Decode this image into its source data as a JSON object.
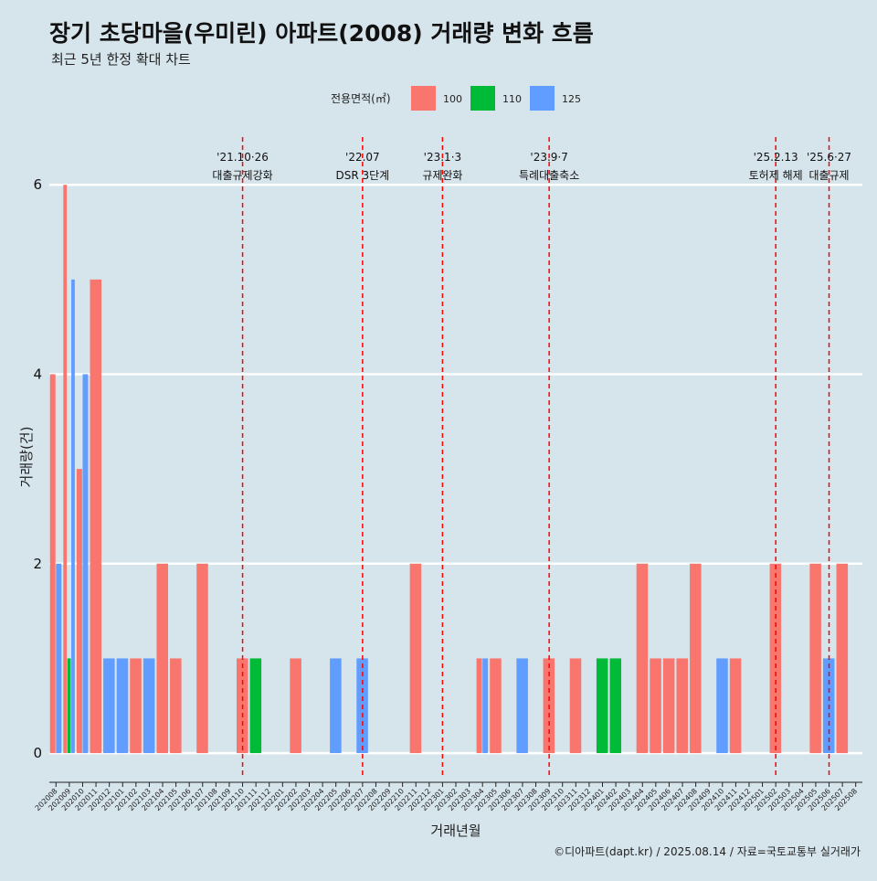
{
  "chart_data": {
    "type": "bar",
    "title": "장기 초당마을(우미린) 아파트(2008) 거래량 변화 흐름",
    "subtitle": "최근 5년 한정 확대 차트",
    "xlabel": "거래년월",
    "ylabel": "거래량(건)",
    "ylim": [
      -0.25,
      6.6
    ],
    "yticks": [
      0,
      2,
      4,
      6
    ],
    "grid": true,
    "legend": {
      "title": "전용면적(㎡)",
      "placement": "top",
      "entries": [
        {
          "name": "100",
          "color": "#f8766d"
        },
        {
          "name": "110",
          "color": "#00ba38"
        },
        {
          "name": "125",
          "color": "#619cff"
        }
      ]
    },
    "categories": [
      "202008",
      "202009",
      "202010",
      "202011",
      "202012",
      "202101",
      "202102",
      "202103",
      "202104",
      "202105",
      "202106",
      "202107",
      "202108",
      "202109",
      "202110",
      "202111",
      "202112",
      "202201",
      "202202",
      "202203",
      "202204",
      "202205",
      "202206",
      "202207",
      "202208",
      "202209",
      "202210",
      "202211",
      "202212",
      "202301",
      "202302",
      "202303",
      "202304",
      "202305",
      "202306",
      "202307",
      "202308",
      "202309",
      "202310",
      "202311",
      "202312",
      "202401",
      "202402",
      "202403",
      "202404",
      "202405",
      "202406",
      "202407",
      "202408",
      "202409",
      "202410",
      "202411",
      "202412",
      "202501",
      "202502",
      "202503",
      "202504",
      "202505",
      "202506",
      "202507",
      "202508"
    ],
    "series": [
      {
        "name": "100",
        "color": "#f8766d",
        "values": [
          4,
          6,
          3,
          5,
          0,
          0,
          1,
          0,
          2,
          1,
          0,
          2,
          0,
          0,
          1,
          0,
          0,
          0,
          1,
          0,
          0,
          0,
          0,
          0,
          0,
          0,
          0,
          2,
          0,
          0,
          0,
          0,
          1,
          1,
          0,
          0,
          0,
          1,
          0,
          1,
          0,
          0,
          0,
          0,
          2,
          1,
          1,
          1,
          2,
          0,
          0,
          1,
          0,
          0,
          2,
          0,
          0,
          2,
          0,
          2,
          0
        ]
      },
      {
        "name": "110",
        "color": "#00ba38",
        "values": [
          0,
          1,
          0,
          0,
          0,
          0,
          0,
          0,
          0,
          0,
          0,
          0,
          0,
          0,
          0,
          1,
          0,
          0,
          0,
          0,
          0,
          0,
          0,
          0,
          0,
          0,
          0,
          0,
          0,
          0,
          0,
          0,
          0,
          0,
          0,
          0,
          0,
          0,
          0,
          0,
          0,
          1,
          1,
          0,
          0,
          0,
          0,
          0,
          0,
          0,
          0,
          0,
          0,
          0,
          0,
          0,
          0,
          0,
          0,
          0,
          0
        ]
      },
      {
        "name": "125",
        "color": "#619cff",
        "values": [
          2,
          5,
          4,
          0,
          1,
          1,
          0,
          1,
          0,
          0,
          0,
          0,
          0,
          0,
          0,
          0,
          0,
          0,
          0,
          0,
          0,
          1,
          0,
          1,
          0,
          0,
          0,
          0,
          0,
          0,
          0,
          0,
          1,
          0,
          0,
          1,
          0,
          0,
          0,
          0,
          0,
          0,
          0,
          0,
          0,
          0,
          0,
          0,
          0,
          0,
          1,
          0,
          0,
          0,
          0,
          0,
          0,
          0,
          1,
          0,
          0
        ]
      }
    ],
    "events": [
      {
        "date_label": "'21.10·26",
        "text": "대출규제강화",
        "position": "202110"
      },
      {
        "date_label": "'22.07",
        "text": "DSR 3단계",
        "position": "202207"
      },
      {
        "date_label": "'23.1·3",
        "text": "규제완화",
        "position": "202301"
      },
      {
        "date_label": "'23.9·7",
        "text": "특례대출축소",
        "position": "202309"
      },
      {
        "date_label": "'25.2.13",
        "text": "토허제 해제",
        "position": "202502"
      },
      {
        "date_label": "'25.6·27",
        "text": "대출규제",
        "position": "202506"
      }
    ],
    "caption": "©디아파트(dapt.kr) / 2025.08.14 / 자료=국토교통부 실거래가"
  }
}
